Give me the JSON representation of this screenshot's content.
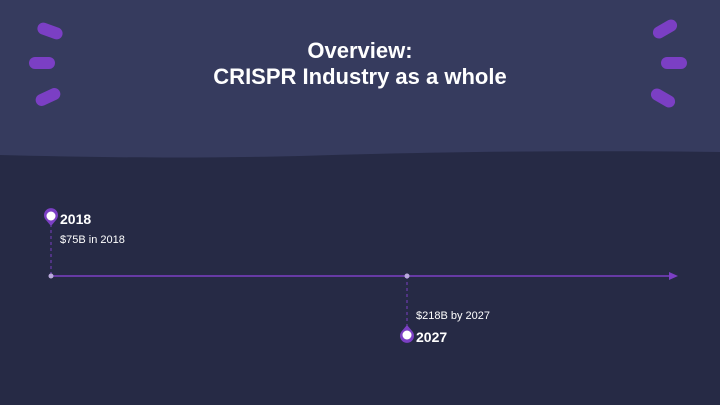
{
  "title": {
    "line1": "Overview:",
    "line2": "CRISPR Industry as a whole"
  },
  "timeline": {
    "events": [
      {
        "year": "2018",
        "detail": "$75B in 2018",
        "position": "above"
      },
      {
        "year": "2027",
        "detail": "$218B by 2027",
        "position": "below"
      }
    ]
  },
  "colors": {
    "band_top": "#363b5e",
    "background": "#262a45",
    "accent": "#7b3fc4",
    "text": "#ffffff"
  }
}
